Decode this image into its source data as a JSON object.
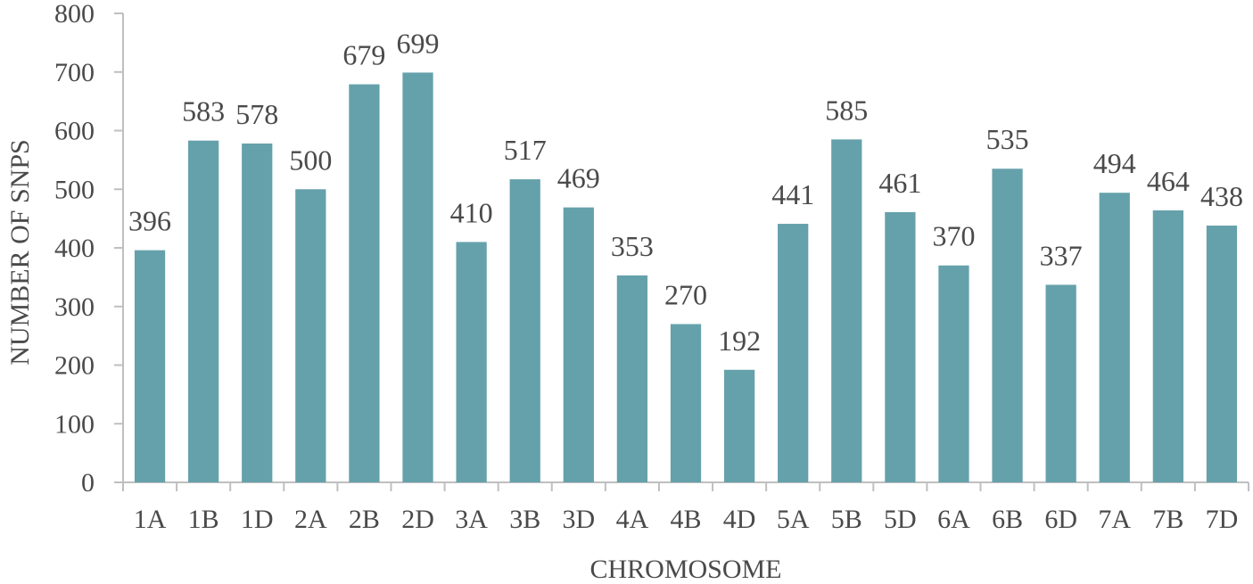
{
  "chart_data": {
    "type": "bar",
    "title": "",
    "xlabel": "CHROMOSOME",
    "ylabel": "NUMBER OF SNPS",
    "ylim": [
      0,
      800
    ],
    "ytick_step": 100,
    "grid": false,
    "legend": "none",
    "bar_color": "#65a1ab",
    "axis_color": "#bfbfbf",
    "text_color": "#4a4a4a",
    "categories": [
      "1A",
      "1B",
      "1D",
      "2A",
      "2B",
      "2D",
      "3A",
      "3B",
      "3D",
      "4A",
      "4B",
      "4D",
      "5A",
      "5B",
      "5D",
      "6A",
      "6B",
      "6D",
      "7A",
      "7B",
      "7D"
    ],
    "values": [
      396,
      583,
      578,
      500,
      679,
      699,
      410,
      517,
      469,
      353,
      270,
      192,
      441,
      585,
      461,
      370,
      535,
      337,
      494,
      464,
      438
    ]
  }
}
